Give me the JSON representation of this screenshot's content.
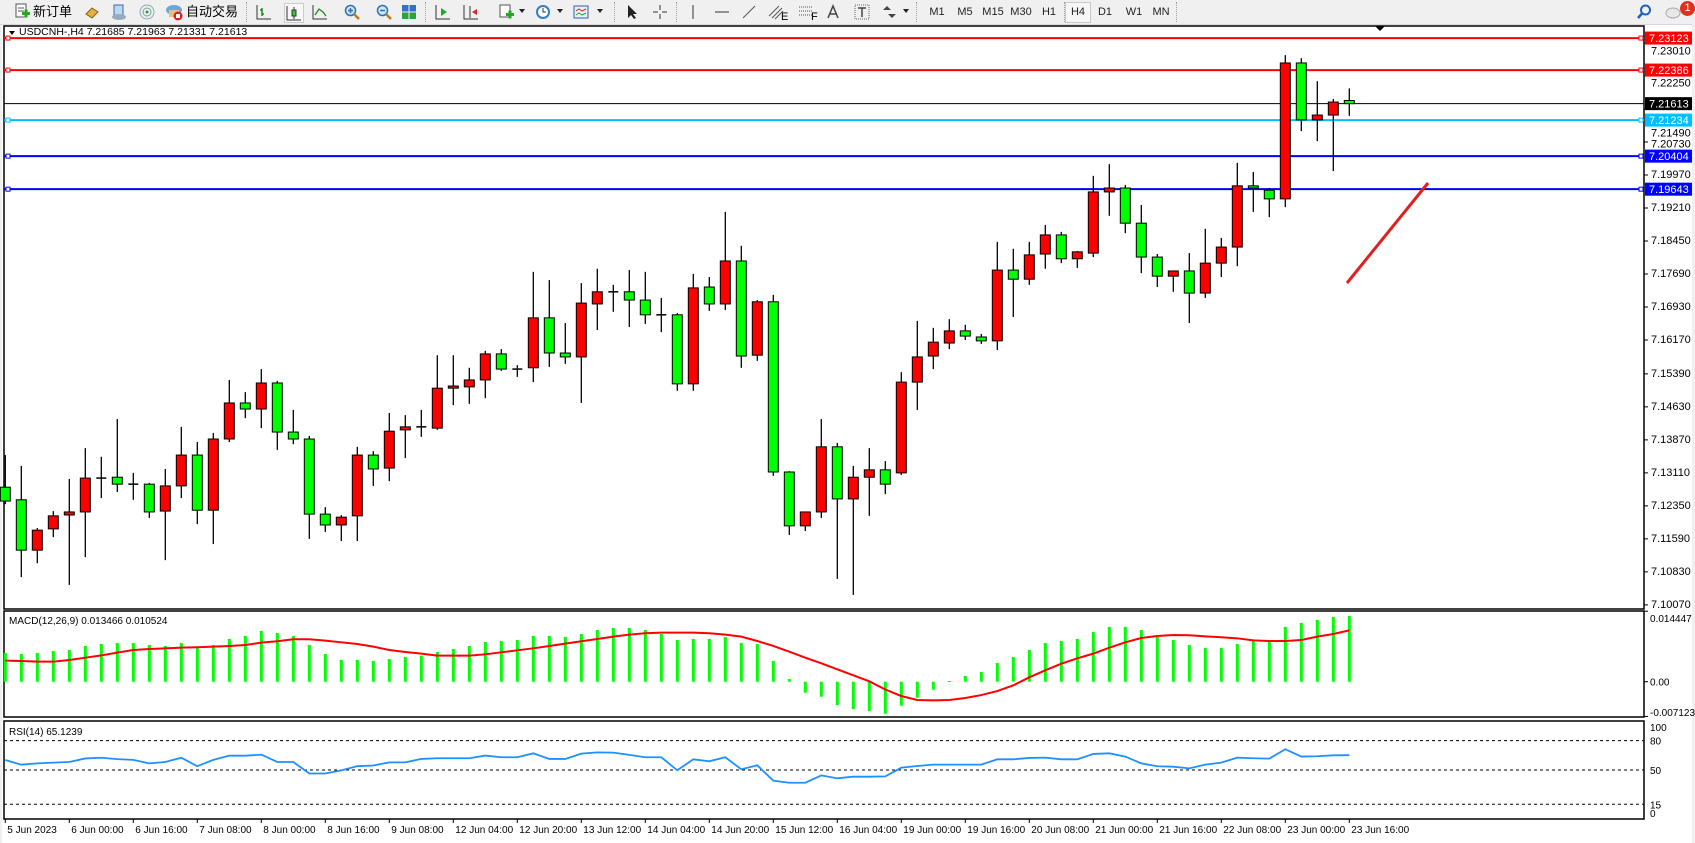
{
  "toolbar": {
    "new_order_label": "新订单",
    "auto_trading_label": "自动交易",
    "icons": [
      "new-order-icon",
      "gold-icon",
      "terminal-icon",
      "signals-icon",
      "auto-trading-icon",
      "bar-chart-icon",
      "candlestick-icon",
      "line-chart-icon",
      "zoom-in-icon",
      "zoom-out-icon",
      "tile-windows-icon",
      "auto-scroll-icon",
      "chart-shift-icon",
      "new-chart-icon",
      "periods-clock-icon",
      "templates-icon",
      "cursor-icon",
      "crosshair-icon",
      "vertical-line-icon",
      "horizontal-line-icon",
      "trendline-icon",
      "equidistant-channel-icon",
      "fibonacci-icon",
      "text-icon",
      "text-label-icon",
      "arrows-icon",
      "search-icon",
      "notification-icon"
    ],
    "timeframes": [
      "M1",
      "M5",
      "M15",
      "M30",
      "H1",
      "H4",
      "D1",
      "W1",
      "MN"
    ],
    "active_timeframe": "H4",
    "notification_count": "1"
  },
  "chart_header": {
    "symbol_line": "USDCNH-,H4  7.21685 7.21963 7.21331 7.21613"
  },
  "colors": {
    "bull_candle": "#FF0000",
    "bear_candle": "#00FF00",
    "candle_outline": "#000000",
    "macd_histogram": "#00FF00",
    "macd_signal": "#FF0000",
    "rsi_line": "#1E90FF",
    "arrow": "#E02020"
  },
  "chart_data": [
    {
      "type": "candlestick",
      "symbol": "USDCNH-",
      "timeframe": "H4",
      "ylim": [
        7.09975,
        7.23401
      ],
      "grid": false,
      "y_ticks": [
        "7.23010",
        "7.22250",
        "7.21490",
        "7.20730",
        "7.19970",
        "7.19210",
        "7.18450",
        "7.17690",
        "7.16930",
        "7.16170",
        "7.15390",
        "7.14630",
        "7.13870",
        "7.13110",
        "7.12350",
        "7.11590",
        "7.10830",
        "7.10070"
      ],
      "x_tick_labels": [
        "5 Jun 2023",
        "6 Jun 00:00",
        "6 Jun 16:00",
        "7 Jun 08:00",
        "8 Jun 00:00",
        "8 Jun 16:00",
        "9 Jun 08:00",
        "12 Jun 04:00",
        "12 Jun 20:00",
        "13 Jun 12:00",
        "14 Jun 04:00",
        "14 Jun 20:00",
        "15 Jun 12:00",
        "16 Jun 04:00",
        "19 Jun 00:00",
        "19 Jun 16:00",
        "20 Jun 08:00",
        "21 Jun 00:00",
        "21 Jun 16:00",
        "22 Jun 08:00",
        "23 Jun 00:00",
        "23 Jun 16:00"
      ],
      "x_tick_every_n_bars": 4,
      "ohlc_fields": [
        "open",
        "high",
        "low",
        "close"
      ],
      "ohlc": [
        [
          7.1278,
          7.1352,
          7.1239,
          7.1246
        ],
        [
          7.1249,
          7.1327,
          7.1071,
          7.1133
        ],
        [
          7.1133,
          7.1184,
          7.1103,
          7.1179
        ],
        [
          7.1182,
          7.1223,
          7.1163,
          7.1212
        ],
        [
          7.1214,
          7.1297,
          7.1053,
          7.1221
        ],
        [
          7.1221,
          7.1368,
          7.1117,
          7.1299
        ],
        [
          7.1299,
          7.1348,
          7.1253,
          7.1299
        ],
        [
          7.1301,
          7.1435,
          7.1267,
          7.1285
        ],
        [
          7.1285,
          7.1311,
          7.1249,
          7.1285
        ],
        [
          7.1285,
          7.1288,
          7.1207,
          7.1221
        ],
        [
          7.1223,
          7.132,
          7.111,
          7.1281
        ],
        [
          7.1281,
          7.1417,
          7.1253,
          7.1352
        ],
        [
          7.1352,
          7.1382,
          7.1193,
          7.1225
        ],
        [
          7.1225,
          7.1403,
          7.1147,
          7.1389
        ],
        [
          7.1389,
          7.1525,
          7.1382,
          7.1472
        ],
        [
          7.1472,
          7.1497,
          7.1437,
          7.1458
        ],
        [
          7.1458,
          7.155,
          7.1414,
          7.1518
        ],
        [
          7.1518,
          7.1523,
          7.1364,
          7.1405
        ],
        [
          7.1405,
          7.1456,
          7.1377,
          7.1389
        ],
        [
          7.1389,
          7.1396,
          7.1159,
          7.1216
        ],
        [
          7.1216,
          7.1232,
          7.1175,
          7.1191
        ],
        [
          7.1191,
          7.1214,
          7.1154,
          7.1209
        ],
        [
          7.1212,
          7.1371,
          7.1154,
          7.1352
        ],
        [
          7.1352,
          7.1361,
          7.1281,
          7.132
        ],
        [
          7.1322,
          7.1449,
          7.1292,
          7.1407
        ],
        [
          7.141,
          7.1444,
          7.1345,
          7.1417
        ],
        [
          7.1417,
          7.1456,
          7.1394,
          7.1417
        ],
        [
          7.1414,
          7.1582,
          7.141,
          7.1506
        ],
        [
          7.1506,
          7.1582,
          7.1467,
          7.1511
        ],
        [
          7.1509,
          7.1553,
          7.147,
          7.1525
        ],
        [
          7.1525,
          7.1592,
          7.1483,
          7.1585
        ],
        [
          7.1585,
          7.1596,
          7.1546,
          7.155
        ],
        [
          7.155,
          7.1559,
          7.1532,
          7.155
        ],
        [
          7.1553,
          7.1774,
          7.152,
          7.1668
        ],
        [
          7.1668,
          7.1755,
          7.1555,
          7.1587
        ],
        [
          7.1587,
          7.1656,
          7.1562,
          7.1578
        ],
        [
          7.1578,
          7.1748,
          7.1472,
          7.1702
        ],
        [
          7.17,
          7.1781,
          7.164,
          7.1728
        ],
        [
          7.1728,
          7.1744,
          7.1682,
          7.1728
        ],
        [
          7.1728,
          7.1778,
          7.1647,
          7.1709
        ],
        [
          7.1709,
          7.1774,
          7.1654,
          7.1675
        ],
        [
          7.1675,
          7.1714,
          7.1635,
          7.1675
        ],
        [
          7.1675,
          7.1679,
          7.15,
          7.1516
        ],
        [
          7.1516,
          7.1769,
          7.15,
          7.1737
        ],
        [
          7.1739,
          7.1762,
          7.1684,
          7.17
        ],
        [
          7.17,
          7.1912,
          7.1686,
          7.1799
        ],
        [
          7.1799,
          7.1834,
          7.1553,
          7.158
        ],
        [
          7.1582,
          7.1709,
          7.1569,
          7.1705
        ],
        [
          7.1705,
          7.1721,
          7.1304,
          7.1313
        ],
        [
          7.1313,
          7.1315,
          7.1168,
          7.1189
        ],
        [
          7.1189,
          7.1221,
          7.1177,
          7.1221
        ],
        [
          7.1221,
          7.1435,
          7.1207,
          7.1371
        ],
        [
          7.1371,
          7.138,
          7.1067,
          7.1251
        ],
        [
          7.1251,
          7.1327,
          7.103,
          7.1301
        ],
        [
          7.1301,
          7.1368,
          7.1212,
          7.1318
        ],
        [
          7.1318,
          7.1338,
          7.1262,
          7.1285
        ],
        [
          7.1311,
          7.1543,
          7.1306,
          7.152
        ],
        [
          7.152,
          7.1661,
          7.1456,
          7.1578
        ],
        [
          7.158,
          7.1645,
          7.155,
          7.1612
        ],
        [
          7.161,
          7.1665,
          7.1596,
          7.1638
        ],
        [
          7.1638,
          7.1652,
          7.1617,
          7.1626
        ],
        [
          7.1624,
          7.1631,
          7.1608,
          7.1615
        ],
        [
          7.1615,
          7.1843,
          7.1594,
          7.1778
        ],
        [
          7.1778,
          7.1827,
          7.167,
          7.1757
        ],
        [
          7.1757,
          7.1843,
          7.1744,
          7.1813
        ],
        [
          7.1815,
          7.1882,
          7.1781,
          7.1859
        ],
        [
          7.1859,
          7.1866,
          7.1794,
          7.1804
        ],
        [
          7.1804,
          7.1822,
          7.1783,
          7.182
        ],
        [
          7.1817,
          7.1995,
          7.1808,
          7.1958
        ],
        [
          7.1958,
          7.2022,
          7.1903,
          7.1967
        ],
        [
          7.1967,
          7.1974,
          7.1863,
          7.1886
        ],
        [
          7.1886,
          7.1928,
          7.1771,
          7.1808
        ],
        [
          7.1808,
          7.1815,
          7.1739,
          7.1764
        ],
        [
          7.1764,
          7.1776,
          7.1728,
          7.1776
        ],
        [
          7.1776,
          7.1817,
          7.1656,
          7.1725
        ],
        [
          7.1725,
          7.1873,
          7.1714,
          7.1794
        ],
        [
          7.1794,
          7.1852,
          7.1762,
          7.1831
        ],
        [
          7.1831,
          7.2025,
          7.1787,
          7.1972
        ],
        [
          7.1972,
          7.2004,
          7.1912,
          7.1967
        ],
        [
          7.1962,
          7.1967,
          7.19,
          7.1942
        ],
        [
          7.1942,
          7.2273,
          7.1923,
          7.2255
        ],
        [
          7.2255,
          7.2266,
          7.2098,
          7.2124
        ],
        [
          7.2124,
          7.2213,
          7.2075,
          7.2135
        ],
        [
          7.2135,
          7.2172,
          7.2006,
          7.2165
        ],
        [
          7.21685,
          7.21963,
          7.21331,
          7.21613
        ]
      ],
      "current_price": {
        "label": "7.21613",
        "value": 7.21613,
        "color": "#000000"
      },
      "horizontal_lines": [
        {
          "label": "7.23123",
          "value": 7.23123,
          "color": "#FF0000"
        },
        {
          "label": "7.22386",
          "value": 7.22386,
          "color": "#FF0000"
        },
        {
          "label": "7.21234",
          "value": 7.21234,
          "color": "#00BFFF"
        },
        {
          "label": "7.20404",
          "value": 7.20404,
          "color": "#0000FF"
        },
        {
          "label": "7.19643",
          "value": 7.19643,
          "color": "#0000FF"
        }
      ],
      "annotations": [
        {
          "type": "arrow",
          "direction": "up-right",
          "color": "#E02020"
        }
      ]
    },
    {
      "type": "bar+line",
      "title": "MACD(12,26,9) 0.013466 0.010524",
      "ylim": [
        -0.00724,
        0.01449
      ],
      "y_ticks": [
        "0.014447",
        "0.00",
        "-0.007123"
      ],
      "y_tick_values": [
        0.014447,
        0,
        -0.007123
      ],
      "histogram": [
        0.00588,
        0.00568,
        0.00588,
        0.00629,
        0.0065,
        0.00732,
        0.00773,
        0.00793,
        0.00793,
        0.00752,
        0.00732,
        0.00793,
        0.00711,
        0.00752,
        0.00876,
        0.00937,
        0.0104,
        0.00999,
        0.00937,
        0.00752,
        0.00568,
        0.00445,
        0.00445,
        0.00424,
        0.00465,
        0.00506,
        0.00534,
        0.00609,
        0.0067,
        0.00732,
        0.00814,
        0.00834,
        0.00855,
        0.00937,
        0.00937,
        0.00917,
        0.00978,
        0.0106,
        0.01101,
        0.01101,
        0.0106,
        0.00978,
        0.00855,
        0.00876,
        0.00876,
        0.00917,
        0.00793,
        0.00773,
        0.00424,
        0.00055,
        -0.00226,
        -0.00308,
        -0.00479,
        -0.00561,
        -0.00602,
        -0.00657,
        -0.00492,
        -0.00328,
        -0.00164,
        0.00014,
        0.00116,
        0.00198,
        0.00383,
        0.00506,
        0.0065,
        0.00793,
        0.00834,
        0.00876,
        0.01019,
        0.01122,
        0.01122,
        0.0106,
        0.00917,
        0.00855,
        0.00752,
        0.00691,
        0.00691,
        0.00773,
        0.00834,
        0.00834,
        0.01122,
        0.01204,
        0.01265,
        0.01327,
        0.013466
      ],
      "signal": [
        0.00431,
        0.00424,
        0.0041,
        0.0041,
        0.00445,
        0.00492,
        0.0054,
        0.00595,
        0.0065,
        0.0067,
        0.00684,
        0.00698,
        0.00705,
        0.00718,
        0.00732,
        0.00752,
        0.008,
        0.00828,
        0.00869,
        0.00869,
        0.00841,
        0.00807,
        0.00773,
        0.00718,
        0.0065,
        0.00609,
        0.00575,
        0.00534,
        0.00534,
        0.00534,
        0.00561,
        0.00602,
        0.00643,
        0.00684,
        0.00732,
        0.0078,
        0.00828,
        0.00876,
        0.00923,
        0.00964,
        0.00992,
        0.01005,
        0.01005,
        0.01005,
        0.00992,
        0.00964,
        0.00923,
        0.00834,
        0.00732,
        0.00616,
        0.00492,
        0.00376,
        0.00253,
        0.0013,
        7e-05,
        -0.0016,
        -0.00294,
        -0.00376,
        -0.00383,
        -0.00376,
        -0.00335,
        -0.00274,
        -0.00192,
        -0.00075,
        0.00089,
        0.00233,
        0.00369,
        0.00479,
        0.00575,
        0.00698,
        0.00807,
        0.00896,
        0.00937,
        0.00958,
        0.00951,
        0.0093,
        0.0091,
        0.00889,
        0.00848,
        0.00834,
        0.00834,
        0.00855,
        0.00923,
        0.00978,
        0.010524
      ]
    },
    {
      "type": "line",
      "title": "RSI(14) 65.1239",
      "ylim": [
        0,
        100
      ],
      "y_ticks": [
        "100",
        "80",
        "50",
        "15",
        "0"
      ],
      "y_tick_values": [
        100,
        80,
        50,
        15,
        0
      ],
      "levels": [
        80,
        50,
        15
      ],
      "values": [
        60.2,
        55.4,
        56.8,
        57.5,
        58.2,
        61.8,
        62.5,
        61.1,
        60.3,
        56.8,
        58.2,
        62.5,
        53.9,
        60.3,
        64.6,
        64.6,
        65.7,
        58.2,
        58.2,
        46.4,
        46.4,
        49.6,
        53.9,
        54.6,
        57.8,
        57.8,
        61.3,
        62,
        62,
        62,
        64.7,
        63,
        63,
        67,
        61.3,
        61.3,
        66.7,
        68,
        67.7,
        65.4,
        63,
        63,
        49.7,
        60.9,
        58.9,
        63,
        50.7,
        54.8,
        39.1,
        37,
        37,
        44.5,
        41.5,
        43.2,
        43.2,
        43.5,
        52.4,
        54.1,
        55.5,
        55.5,
        55.5,
        55.5,
        60.9,
        60.9,
        62.3,
        62.6,
        60.9,
        60.9,
        66.4,
        67,
        63.7,
        56.8,
        53.8,
        53.4,
        51.7,
        55.5,
        57.5,
        62.6,
        62,
        61.6,
        71.2,
        63.7,
        64,
        65,
        65.1239
      ]
    }
  ]
}
